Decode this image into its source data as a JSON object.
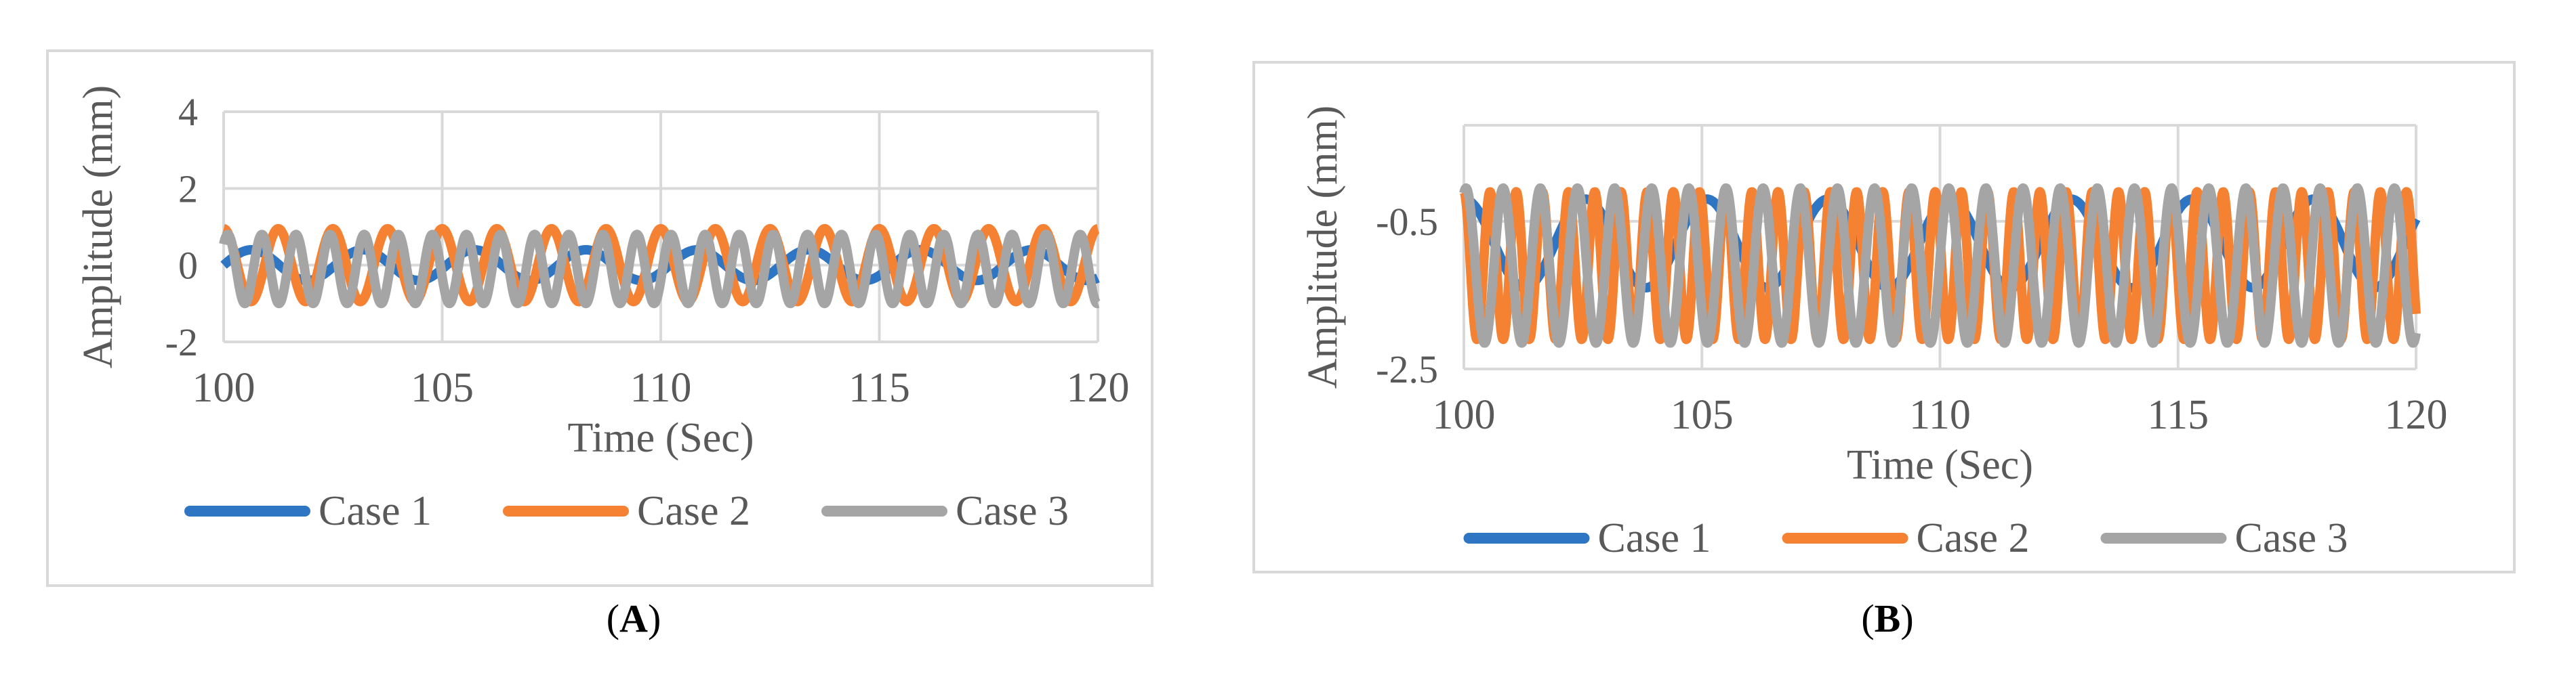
{
  "panel_labels": [
    "A",
    "B"
  ],
  "chart_data": [
    {
      "type": "line",
      "panel": "A",
      "xlabel": "Time (Sec)",
      "ylabel": "Amplitude (mm)",
      "xlim": [
        100,
        120
      ],
      "ylim": [
        -2,
        4
      ],
      "xticks": [
        100,
        105,
        110,
        115,
        120
      ],
      "yticks": [
        -2,
        0,
        2,
        4
      ],
      "grid": true,
      "legend": "bottom",
      "series": [
        {
          "name": "Case 1",
          "color": "#2E75C3",
          "mean": 0.0,
          "amplitude": 0.4,
          "period_s": 2.55,
          "phase": 0.0
        },
        {
          "name": "Case 2",
          "color": "#F58233",
          "mean": 0.0,
          "amplitude": 0.95,
          "period_s": 1.25,
          "phase": 1.57
        },
        {
          "name": "Case 3",
          "color": "#A5A5A5",
          "mean": -0.1,
          "amplitude": 0.9,
          "period_s": 0.78,
          "phase": 0.8
        }
      ]
    },
    {
      "type": "line",
      "panel": "B",
      "xlabel": "Time (Sec)",
      "ylabel": "Amplitude (mm)",
      "xlim": [
        100,
        120
      ],
      "ylim": [
        -2.5,
        0.8
      ],
      "xticks": [
        100,
        105,
        110,
        115,
        120
      ],
      "yticks": [
        -2.5,
        -0.5
      ],
      "grid": true,
      "legend": "bottom",
      "series": [
        {
          "name": "Case 1",
          "color": "#2E75C3",
          "mean": -0.8,
          "amplitude": 0.6,
          "period_s": 2.55,
          "phase": 1.57
        },
        {
          "name": "Case 2",
          "color": "#F58233",
          "mean": -1.1,
          "amplitude": 1.0,
          "period_s": 0.55,
          "phase": 1.57
        },
        {
          "name": "Case 3",
          "color": "#A5A5A5",
          "mean": -1.1,
          "amplitude": 1.05,
          "period_s": 0.78,
          "phase": 1.2
        }
      ]
    }
  ]
}
